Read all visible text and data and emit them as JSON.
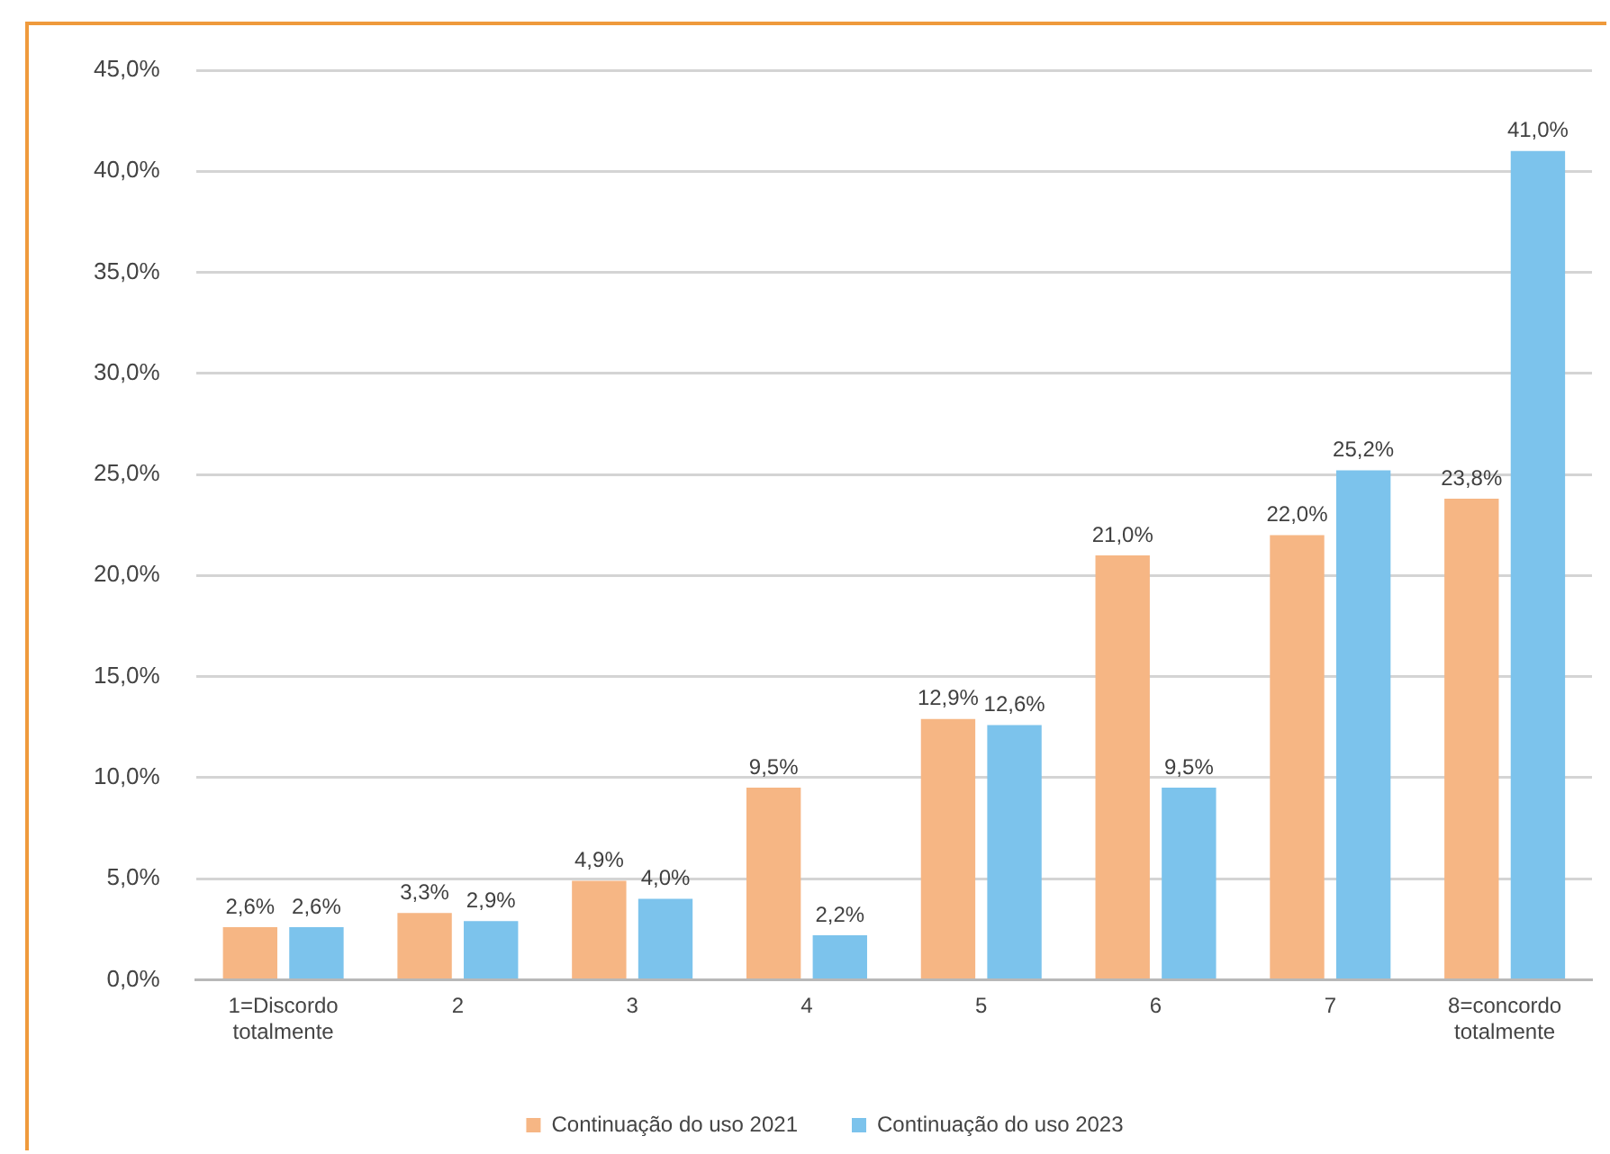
{
  "chart_data": {
    "type": "bar",
    "categories": [
      "1=Discordo totalmente",
      "2",
      "3",
      "4",
      "5",
      "6",
      "7",
      "8=concordo totalmente"
    ],
    "series": [
      {
        "name": "Continuação do uso 2021",
        "color": "#f6b684",
        "values": [
          2.6,
          3.3,
          4.9,
          9.5,
          12.9,
          21.0,
          22.0,
          23.8
        ],
        "value_labels": [
          "2,6%",
          "3,3%",
          "4,9%",
          "9,5%",
          "12,9%",
          "21,0%",
          "22,0%",
          "23,8%"
        ]
      },
      {
        "name": "Continuação do uso 2023",
        "color": "#7cc3ec",
        "values": [
          2.6,
          2.9,
          4.0,
          2.2,
          12.6,
          9.5,
          25.2,
          41.0
        ],
        "value_labels": [
          "2,6%",
          "2,9%",
          "4,0%",
          "2,2%",
          "12,6%",
          "9,5%",
          "25,2%",
          "41,0%"
        ]
      }
    ],
    "ylim": [
      0,
      45
    ],
    "yticks": [
      {
        "value": 0,
        "label": "0,0%"
      },
      {
        "value": 5,
        "label": "5,0%"
      },
      {
        "value": 10,
        "label": "10,0%"
      },
      {
        "value": 15,
        "label": "15,0%"
      },
      {
        "value": 20,
        "label": "20,0%"
      },
      {
        "value": 25,
        "label": "25,0%"
      },
      {
        "value": 30,
        "label": "30,0%"
      },
      {
        "value": 35,
        "label": "35,0%"
      },
      {
        "value": 40,
        "label": "40,0%"
      },
      {
        "value": 45,
        "label": "45,0%"
      }
    ],
    "grid": "y",
    "legend": "bottom"
  }
}
